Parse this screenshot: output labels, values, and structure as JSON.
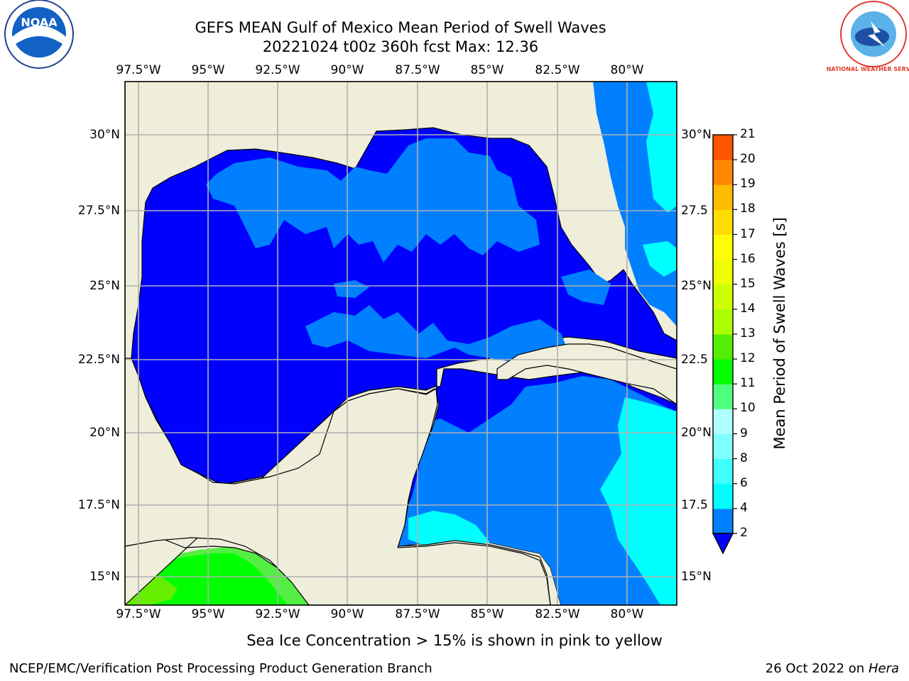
{
  "header": {
    "title": "GEFS MEAN Gulf of Mexico Mean Period of Swell Waves",
    "subtitle": "20221024 t00z 360h fcst   Max: 12.36"
  },
  "map": {
    "lon_labels": [
      "97.5°W",
      "95°W",
      "92.5°W",
      "90°W",
      "87.5°W",
      "85°W",
      "82.5°W",
      "80°W"
    ],
    "lat_labels": [
      "30°N",
      "27.5°N",
      "25°N",
      "22.5°N",
      "20°N",
      "17.5°N",
      "15°N"
    ],
    "lat_labels_right": [
      "30°N",
      "27.5",
      "25°N",
      "22.5",
      "20°N",
      "17.5",
      "15°N"
    ],
    "colors": {
      "land": "#efeedb",
      "deep_blue": "#0000ff",
      "blue": "#0080ff",
      "cyan": "#00ffff",
      "lime": "#00ff00",
      "green": "#55ff22",
      "grid": "#b0b0b0"
    }
  },
  "colorbar": {
    "label": "Mean Period of Swell Waves [s]",
    "tick_labels": [
      "2",
      "4",
      "6",
      "8",
      "9",
      "10",
      "11",
      "12",
      "13",
      "14",
      "15",
      "16",
      "17",
      "18",
      "19",
      "20",
      "21"
    ],
    "colors": [
      "#0080ff",
      "#00ffff",
      "#40ffff",
      "#80ffff",
      "#b0ffff",
      "#50ff80",
      "#00ff00",
      "#55ee00",
      "#aaff00",
      "#ccff00",
      "#eeff00",
      "#ffff00",
      "#ffdd00",
      "#ffbb00",
      "#ff8800",
      "#ff5500",
      "#ff2200",
      "#ff0000"
    ],
    "extend_color": "#0000ff"
  },
  "logos": {
    "left_text": "NOAA",
    "right_text": "NATIONAL WEATHER SERVICE"
  },
  "footer": {
    "note": "Sea Ice Concentration > 15% is shown in pink to yellow",
    "credit": "NCEP/EMC/Verification Post Processing Product Generation Branch",
    "date": "26 Oct 2022 on",
    "host": "Hera"
  }
}
